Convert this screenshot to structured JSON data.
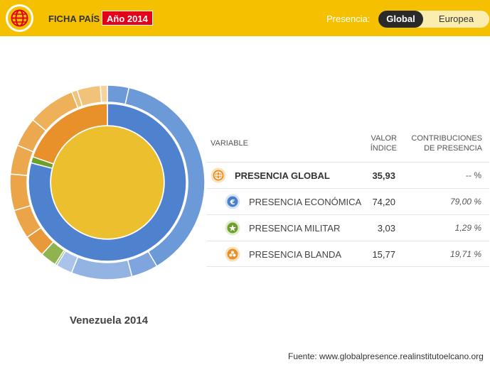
{
  "header": {
    "title": "FICHA PAÍS",
    "year_badge": "Año 2014",
    "presence_label": "Presencia:",
    "toggle": {
      "global": "Global",
      "europea": "Europea"
    }
  },
  "colors": {
    "header_bg": "#f5c000",
    "accent_red": "#e2001a",
    "economic": "#4a7fcc",
    "military": "#6f9f2b",
    "soft": "#e8902a",
    "global": "#ecbf2e"
  },
  "chart_data": {
    "type": "sunburst",
    "center": {
      "name": "PRESENCIA GLOBAL",
      "color": "#ecbf2e"
    },
    "inner_ring": [
      {
        "name": "PRESENCIA ECONÓMICA",
        "share": 79.0,
        "color": "#4f82ce"
      },
      {
        "name": "PRESENCIA MILITAR",
        "share": 1.29,
        "color": "#6f9f2b"
      },
      {
        "name": "PRESENCIA BLANDA",
        "share": 19.71,
        "color": "#e8902a"
      }
    ],
    "outer_ring": [
      {
        "parent": "economic",
        "share": 4.6,
        "color": "#6c99d8"
      },
      {
        "parent": "economic",
        "share": 49.0,
        "color": "#6c99d8"
      },
      {
        "parent": "economic",
        "share": 5.7,
        "color": "#7ea5dd"
      },
      {
        "parent": "economic",
        "share": 13.0,
        "color": "#93b4e3"
      },
      {
        "parent": "economic",
        "share": 3.5,
        "color": "#a9c3ea"
      },
      {
        "parent": "military",
        "share": 0.4,
        "color": "#7faa3c"
      },
      {
        "parent": "military",
        "share": 3.5,
        "color": "#8fb44f"
      },
      {
        "parent": "soft",
        "share": 4.8,
        "color": "#e89a3a"
      },
      {
        "parent": "soft",
        "share": 6.3,
        "color": "#eba448"
      },
      {
        "parent": "soft",
        "share": 7.8,
        "color": "#eba448"
      },
      {
        "parent": "soft",
        "share": 6.3,
        "color": "#eca84f"
      },
      {
        "parent": "soft",
        "share": 6.3,
        "color": "#eca84f"
      },
      {
        "parent": "soft",
        "share": 10.2,
        "color": "#eeb059"
      },
      {
        "parent": "soft",
        "share": 1.2,
        "color": "#f1c27a"
      },
      {
        "parent": "soft",
        "share": 5.0,
        "color": "#f1c27a"
      },
      {
        "parent": "soft",
        "share": 1.5,
        "color": "#f4d49a"
      }
    ]
  },
  "country_label": "Venezuela 2014",
  "table": {
    "headers": {
      "variable": "VARIABLE",
      "valor_1": "VALOR",
      "valor_2": "ÍNDICE",
      "contrib_1": "CONTRIBUCIONES",
      "contrib_2": "DE PRESENCIA"
    },
    "rows": [
      {
        "name": "PRESENCIA GLOBAL",
        "value": "35,93",
        "contribution": "-- %",
        "icon": "globe-icon",
        "icon_color": "#e8902a"
      },
      {
        "name": "PRESENCIA ECONÓMICA",
        "value": "74,20",
        "contribution": "79,00 %",
        "icon": "euro-icon",
        "icon_color": "#4a7fcc"
      },
      {
        "name": "PRESENCIA MILITAR",
        "value": "3,03",
        "contribution": "1,29 %",
        "icon": "military-icon",
        "icon_color": "#6f9f2b"
      },
      {
        "name": "PRESENCIA BLANDA",
        "value": "15,77",
        "contribution": "19,71 %",
        "icon": "soft-power-icon",
        "icon_color": "#e8902a"
      }
    ]
  },
  "source": "Fuente: www.globalpresence.realinstitutoelcano.org"
}
